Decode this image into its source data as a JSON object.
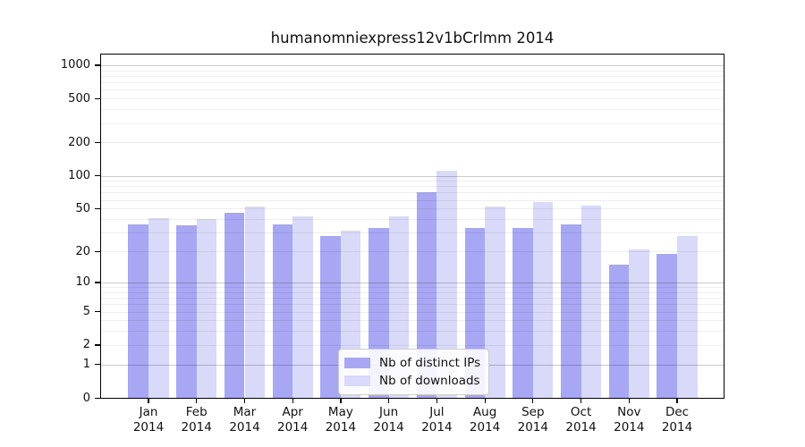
{
  "title": "humanomniexpress12v1bCrlmm 2014",
  "chart_data": {
    "type": "bar",
    "title": "humanomniexpress12v1bCrlmm 2014",
    "categories": [
      "Jan",
      "Feb",
      "Mar",
      "Apr",
      "May",
      "Jun",
      "Jul",
      "Aug",
      "Sep",
      "Oct",
      "Nov",
      "Dec"
    ],
    "year": "2014",
    "series": [
      {
        "name": "Nb of distinct IPs",
        "color": "#a7a7f4",
        "values": [
          36,
          35,
          46,
          36,
          28,
          33,
          70,
          33,
          33,
          36,
          15,
          19
        ]
      },
      {
        "name": "Nb of downloads",
        "color": "#d9d9f9",
        "values": [
          41,
          40,
          52,
          42,
          31,
          42,
          110,
          52,
          57,
          53,
          21,
          28
        ]
      }
    ],
    "y_ticks": [
      0,
      1,
      2,
      5,
      10,
      20,
      50,
      100,
      200,
      500,
      1000
    ],
    "y_scale": "log10(1+value)",
    "xlabel": "",
    "ylabel": "",
    "grid": true,
    "legend_position": "lower-center"
  },
  "legend": {
    "items": [
      {
        "label": "Nb of distinct IPs",
        "swatch": "distinct-ips-swatch"
      },
      {
        "label": "Nb of downloads",
        "swatch": "downloads-swatch"
      }
    ]
  },
  "colors": {
    "bar_distinct_ips": "#a7a7f4",
    "bar_downloads": "#d9d9f9",
    "grid_major": "rgba(0,0,0,0.20)",
    "grid_minor": "rgba(0,0,0,0.065)",
    "axis": "#000000",
    "text": "#111111"
  }
}
